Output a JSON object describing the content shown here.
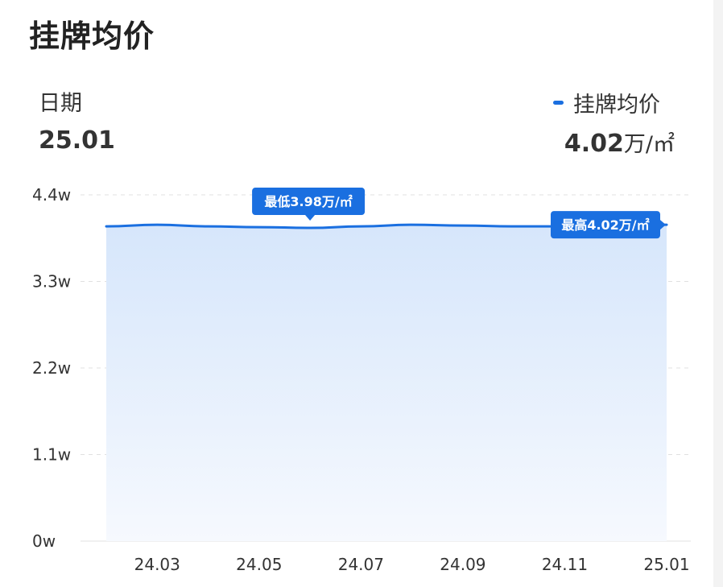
{
  "header": {
    "title": "挂牌均价"
  },
  "selection": {
    "date_label": "日期",
    "date_value": "25.01"
  },
  "legend": {
    "label": "挂牌均价"
  },
  "price": {
    "value": "4.02",
    "unit": "万/㎡"
  },
  "colors": {
    "line": "#1a6fe0",
    "grid": "#e0e0e0",
    "bubble": "#1a6fe0"
  },
  "chart_data": {
    "type": "area",
    "x": [
      "24.02",
      "24.03",
      "24.04",
      "24.05",
      "24.06",
      "24.07",
      "24.08",
      "24.09",
      "24.10",
      "24.11",
      "24.12",
      "25.01"
    ],
    "series": [
      {
        "name": "挂牌均价",
        "values": [
          4.0,
          4.02,
          4.0,
          3.99,
          3.98,
          4.0,
          4.02,
          4.01,
          4.0,
          4.0,
          4.01,
          4.02
        ]
      }
    ],
    "x_tick_labels": [
      "24.03",
      "24.05",
      "24.07",
      "24.09",
      "24.11",
      "25.01"
    ],
    "y_ticks": [
      0,
      1.1,
      2.2,
      3.3,
      4.4
    ],
    "y_tick_labels": [
      "0w",
      "1.1w",
      "2.2w",
      "3.3w",
      "4.4w"
    ],
    "ylim": [
      0,
      4.4
    ],
    "unit": "万/㎡",
    "grid": true,
    "annotations": {
      "min": {
        "text": "最低3.98万/㎡",
        "x": "24.06",
        "value": 3.98
      },
      "max": {
        "text": "最高4.02万/㎡",
        "x": "25.01",
        "value": 4.02
      }
    }
  }
}
